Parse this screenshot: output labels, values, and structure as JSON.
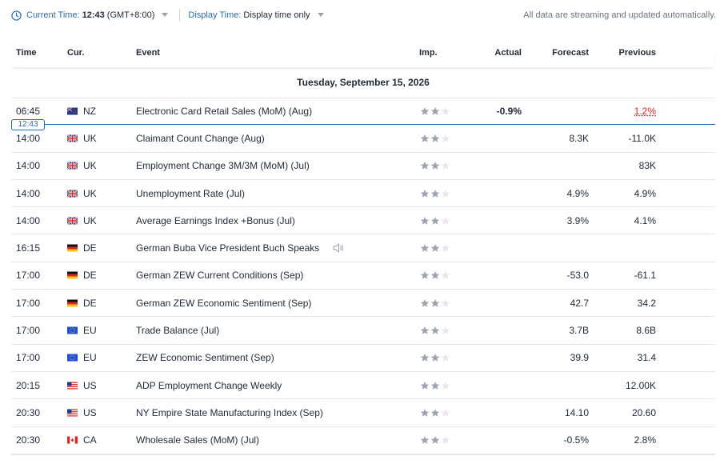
{
  "topbar": {
    "current_time_label": "Current Time:",
    "current_time_value": "12:43",
    "current_time_zone": "(GMT+8:00)",
    "display_time_label": "Display Time:",
    "display_time_value": "Display time only",
    "streaming_note": "All data are streaming and updated automatically."
  },
  "columns": {
    "time": "Time",
    "cur": "Cur.",
    "event": "Event",
    "imp": "Imp.",
    "actual": "Actual",
    "forecast": "Forecast",
    "previous": "Previous"
  },
  "day_header": "Tuesday, September 15, 2026",
  "now_marker": "12:43",
  "colors": {
    "accent": "#2b6cb0",
    "negative": "#dc2626",
    "star_filled": "#9ca3af",
    "star_empty": "#e5e7eb"
  },
  "events": [
    {
      "time": "06:45",
      "flag": "nz-flag-icon",
      "cur": "NZ",
      "event": "Electronic Card Retail Sales (MoM) (Aug)",
      "stars": 2,
      "actual": "-0.9%",
      "forecast": "",
      "previous": "1.2%",
      "previous_revised": true
    },
    {
      "time": "14:00",
      "flag": "uk-flag-icon",
      "cur": "UK",
      "event": "Claimant Count Change  (Aug)",
      "stars": 2,
      "actual": "",
      "forecast": "8.3K",
      "previous": "-11.0K"
    },
    {
      "time": "14:00",
      "flag": "uk-flag-icon",
      "cur": "UK",
      "event": "Employment Change 3M/3M (MoM) (Jul)",
      "stars": 2,
      "actual": "",
      "forecast": "",
      "previous": "83K"
    },
    {
      "time": "14:00",
      "flag": "uk-flag-icon",
      "cur": "UK",
      "event": "Unemployment Rate  (Jul)",
      "stars": 2,
      "actual": "",
      "forecast": "4.9%",
      "previous": "4.9%"
    },
    {
      "time": "14:00",
      "flag": "uk-flag-icon",
      "cur": "UK",
      "event": "Average Earnings Index +Bonus  (Jul)",
      "stars": 2,
      "actual": "",
      "forecast": "3.9%",
      "previous": "4.1%"
    },
    {
      "time": "16:15",
      "flag": "de-flag-icon",
      "cur": "DE",
      "event": "German Buba Vice President Buch Speaks",
      "stars": 2,
      "actual": "",
      "forecast": "",
      "previous": "",
      "speech": true
    },
    {
      "time": "17:00",
      "flag": "de-flag-icon",
      "cur": "DE",
      "event": "German ZEW Current Conditions  (Sep)",
      "stars": 2,
      "actual": "",
      "forecast": "-53.0",
      "previous": "-61.1"
    },
    {
      "time": "17:00",
      "flag": "de-flag-icon",
      "cur": "DE",
      "event": "German ZEW Economic Sentiment  (Sep)",
      "stars": 2,
      "actual": "",
      "forecast": "42.7",
      "previous": "34.2"
    },
    {
      "time": "17:00",
      "flag": "eu-flag-icon",
      "cur": "EU",
      "event": "Trade Balance  (Jul)",
      "stars": 2,
      "actual": "",
      "forecast": "3.7B",
      "previous": "8.6B"
    },
    {
      "time": "17:00",
      "flag": "eu-flag-icon",
      "cur": "EU",
      "event": "ZEW Economic Sentiment  (Sep)",
      "stars": 2,
      "actual": "",
      "forecast": "39.9",
      "previous": "31.4"
    },
    {
      "time": "20:15",
      "flag": "us-flag-icon",
      "cur": "US",
      "event": "ADP Employment Change Weekly",
      "stars": 2,
      "actual": "",
      "forecast": "",
      "previous": "12.00K"
    },
    {
      "time": "20:30",
      "flag": "us-flag-icon",
      "cur": "US",
      "event": "NY Empire State Manufacturing Index  (Sep)",
      "stars": 2,
      "actual": "",
      "forecast": "14.10",
      "previous": "20.60"
    },
    {
      "time": "20:30",
      "flag": "ca-flag-icon",
      "cur": "CA",
      "event": "Wholesale Sales (MoM) (Jul)",
      "stars": 2,
      "actual": "",
      "forecast": "-0.5%",
      "previous": "2.8%"
    }
  ]
}
